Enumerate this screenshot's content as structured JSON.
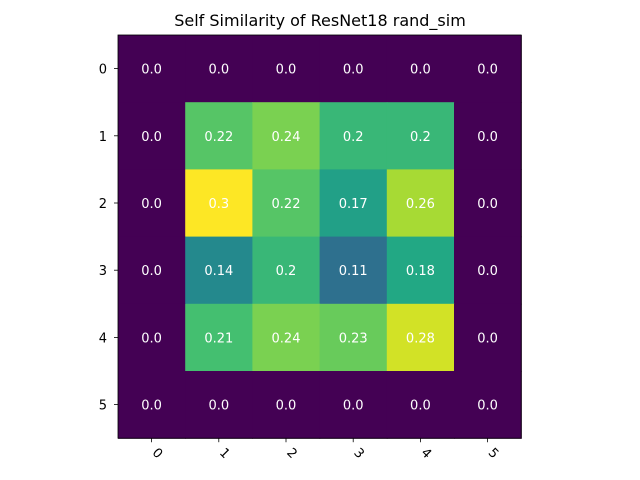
{
  "chart_data": {
    "type": "heatmap",
    "title": "Self Similarity of ResNet18 rand_sim",
    "x_ticks": [
      "0",
      "1",
      "2",
      "3",
      "4",
      "5"
    ],
    "y_ticks": [
      "0",
      "1",
      "2",
      "3",
      "4",
      "5"
    ],
    "values": [
      [
        0.0,
        0.0,
        0.0,
        0.0,
        0.0,
        0.0
      ],
      [
        0.0,
        0.22,
        0.24,
        0.2,
        0.2,
        0.0
      ],
      [
        0.0,
        0.3,
        0.22,
        0.17,
        0.26,
        0.0
      ],
      [
        0.0,
        0.14,
        0.2,
        0.11,
        0.18,
        0.0
      ],
      [
        0.0,
        0.21,
        0.24,
        0.23,
        0.28,
        0.0
      ],
      [
        0.0,
        0.0,
        0.0,
        0.0,
        0.0,
        0.0
      ]
    ],
    "cell_labels": [
      [
        "0.0",
        "0.0",
        "0.0",
        "0.0",
        "0.0",
        "0.0"
      ],
      [
        "0.0",
        "0.22",
        "0.24",
        "0.2",
        "0.2",
        "0.0"
      ],
      [
        "0.0",
        "0.3",
        "0.22",
        "0.17",
        "0.26",
        "0.0"
      ],
      [
        "0.0",
        "0.14",
        "0.2",
        "0.11",
        "0.18",
        "0.0"
      ],
      [
        "0.0",
        "0.21",
        "0.24",
        "0.23",
        "0.28",
        "0.0"
      ],
      [
        "0.0",
        "0.0",
        "0.0",
        "0.0",
        "0.0",
        "0.0"
      ]
    ],
    "colormap": "viridis",
    "value_range": [
      0.0,
      0.3
    ],
    "x_tick_rotation_deg": 45,
    "grid": false,
    "legend": "none"
  }
}
